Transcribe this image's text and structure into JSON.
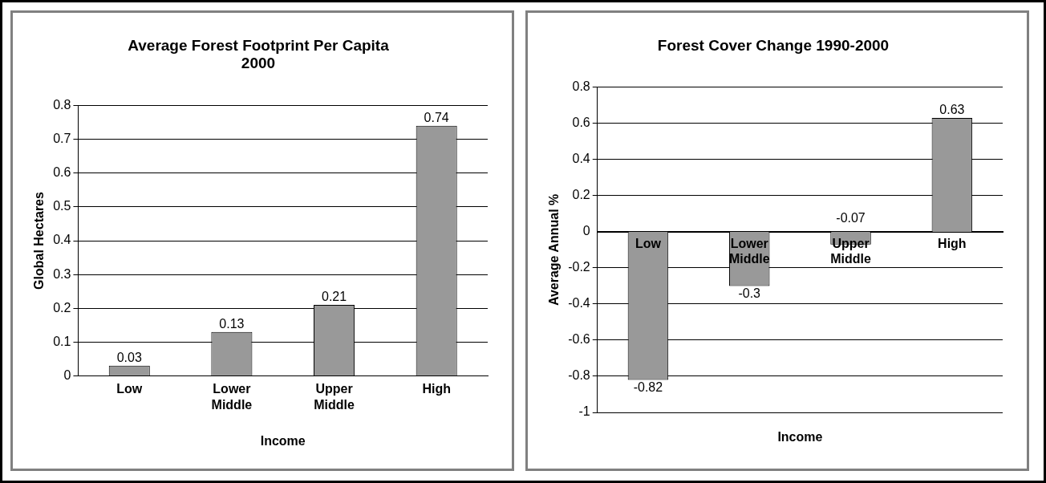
{
  "chart_data": [
    {
      "type": "bar",
      "title": "Average Forest Footprint Per Capita 2000",
      "xlabel": "Income",
      "ylabel": "Global Hectares",
      "categories": [
        "Low",
        "Lower Middle",
        "Upper Middle",
        "High"
      ],
      "values": [
        0.03,
        0.13,
        0.21,
        0.74
      ],
      "color": "#999999",
      "ylim": [
        0,
        0.8
      ],
      "yticks": [
        0,
        0.1,
        0.2,
        0.3,
        0.4,
        0.5,
        0.6,
        0.7,
        0.8
      ],
      "grid": "y",
      "data_labels": true
    },
    {
      "type": "bar",
      "title": "Forest Cover Change 1990-2000",
      "xlabel": "Income",
      "ylabel": "Average Annual %",
      "categories": [
        "Low",
        "Lower Middle",
        "Upper Middle",
        "High"
      ],
      "values": [
        -0.82,
        -0.3,
        -0.07,
        0.63
      ],
      "color": "#999999",
      "ylim": [
        -1,
        0.8
      ],
      "yticks": [
        -1,
        -0.8,
        -0.6,
        -0.4,
        -0.2,
        0,
        0.2,
        0.4,
        0.6,
        0.8
      ],
      "grid": "y",
      "data_labels": true
    }
  ]
}
